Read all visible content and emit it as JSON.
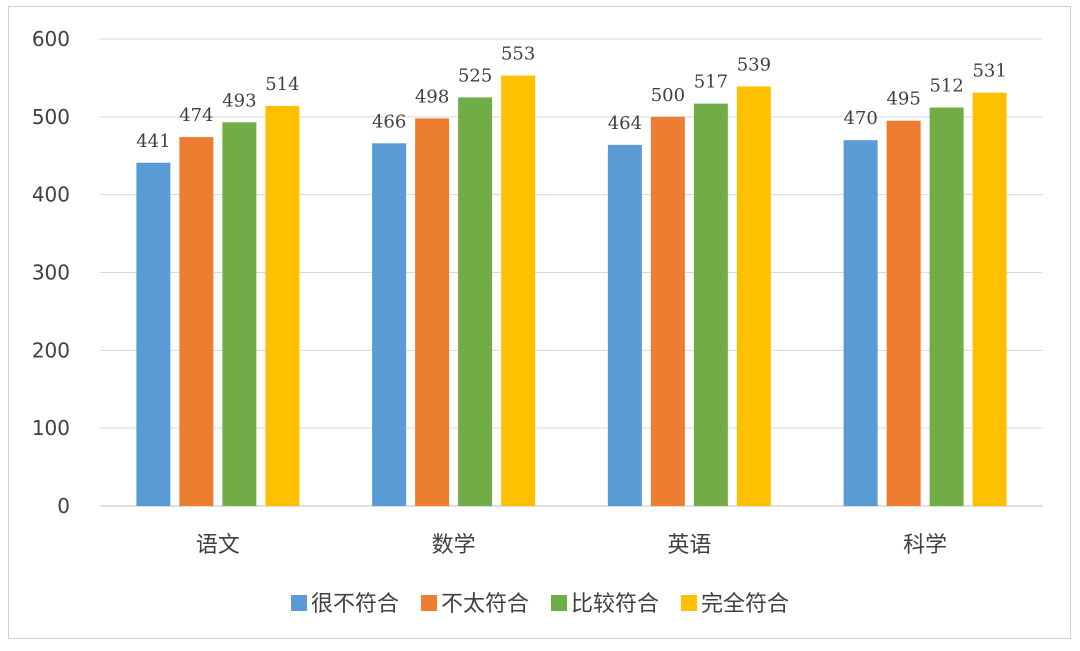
{
  "chart_data": {
    "type": "bar",
    "categories": [
      "语文",
      "数学",
      "英语",
      "科学"
    ],
    "series": [
      {
        "name": "很不符合",
        "values": [
          441,
          466,
          464,
          470
        ],
        "color": "#5B9BD5"
      },
      {
        "name": "不太符合",
        "values": [
          474,
          498,
          500,
          495
        ],
        "color": "#ED7D31"
      },
      {
        "name": "比较符合",
        "values": [
          493,
          525,
          517,
          512
        ],
        "color": "#70AD47"
      },
      {
        "name": "完全符合",
        "values": [
          514,
          553,
          539,
          531
        ],
        "color": "#FFC000"
      }
    ],
    "title": "",
    "xlabel": "",
    "ylabel": "",
    "ylim": [
      0,
      600
    ],
    "yticks": [
      0,
      100,
      200,
      300,
      400,
      500,
      600
    ],
    "grid": true,
    "legend": "bottom",
    "data_labels": true,
    "gridline_color": "#d9d9d9",
    "axis_color": "#bfbfbf",
    "text_color": "#404040"
  }
}
